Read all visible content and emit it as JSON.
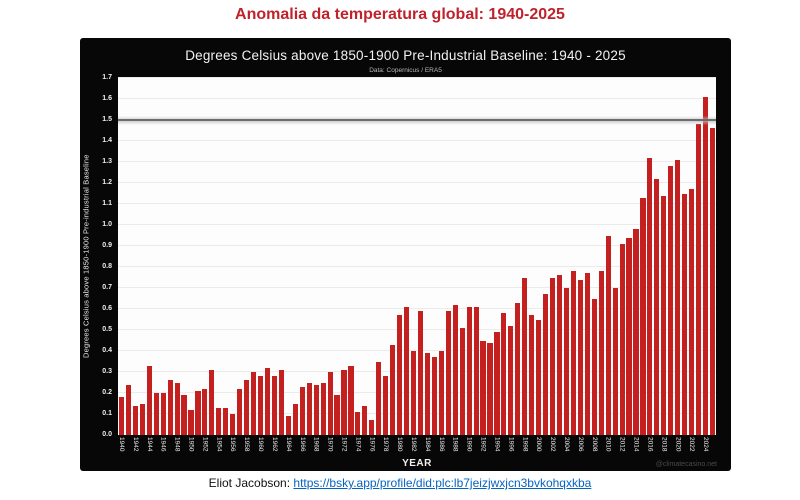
{
  "page": {
    "title": "Anomalia da temperatura global: 1940-2025",
    "footer": {
      "prefix": "Eliot Jacobson: ",
      "link_text": "https://bsky.app/profile/did:plc:lb7jeizjwxjcn3bvkohqxkba"
    }
  },
  "chart": {
    "title": "Degrees Celsius above 1850-1900 Pre-Industrial Baseline: 1940 - 2025",
    "subtitle": "Data: Copernicus / ERA5",
    "ylabel": "Degrees Celsius above 1850-1900 Pre-industrial Baseline",
    "xlabel": "YEAR",
    "watermark": "@climatecasino.net"
  },
  "colors": {
    "page_title": "#c0222c",
    "bar": "#c3201f",
    "chart_background": "#070707",
    "plot_background": "#fdfdfd",
    "link_blue": "#0563c1",
    "threshold_gray": "#6d6d6d"
  },
  "chart_data": {
    "type": "bar",
    "title": "Degrees Celsius above 1850-1900 Pre-Industrial Baseline: 1940 - 2025",
    "subtitle": "Data: Copernicus / ERA5",
    "xlabel": "YEAR",
    "ylabel": "Degrees Celsius above 1850-1900 Pre-industrial Baseline",
    "ylim": [
      0.0,
      1.7
    ],
    "ytick_step": 0.1,
    "xtick_step": 2,
    "grid": true,
    "threshold_value": 1.5,
    "legend": "none",
    "x": [
      1940,
      1941,
      1942,
      1943,
      1944,
      1945,
      1946,
      1947,
      1948,
      1949,
      1950,
      1951,
      1952,
      1953,
      1954,
      1955,
      1956,
      1957,
      1958,
      1959,
      1960,
      1961,
      1962,
      1963,
      1964,
      1965,
      1966,
      1967,
      1968,
      1969,
      1970,
      1971,
      1972,
      1973,
      1974,
      1975,
      1976,
      1977,
      1978,
      1979,
      1980,
      1981,
      1982,
      1983,
      1984,
      1985,
      1986,
      1987,
      1988,
      1989,
      1990,
      1991,
      1992,
      1993,
      1994,
      1995,
      1996,
      1997,
      1998,
      1999,
      2000,
      2001,
      2002,
      2003,
      2004,
      2005,
      2006,
      2007,
      2008,
      2009,
      2010,
      2011,
      2012,
      2013,
      2014,
      2015,
      2016,
      2017,
      2018,
      2019,
      2020,
      2021,
      2022,
      2023,
      2024,
      2025
    ],
    "values": [
      0.18,
      0.24,
      0.14,
      0.15,
      0.33,
      0.2,
      0.2,
      0.26,
      0.25,
      0.19,
      0.12,
      0.21,
      0.22,
      0.31,
      0.13,
      0.13,
      0.1,
      0.22,
      0.26,
      0.3,
      0.28,
      0.32,
      0.28,
      0.31,
      0.09,
      0.15,
      0.23,
      0.25,
      0.24,
      0.25,
      0.3,
      0.19,
      0.31,
      0.33,
      0.11,
      0.14,
      0.07,
      0.35,
      0.28,
      0.43,
      0.57,
      0.61,
      0.4,
      0.59,
      0.39,
      0.37,
      0.4,
      0.59,
      0.62,
      0.51,
      0.61,
      0.61,
      0.45,
      0.44,
      0.49,
      0.58,
      0.52,
      0.63,
      0.75,
      0.57,
      0.55,
      0.67,
      0.75,
      0.76,
      0.7,
      0.78,
      0.74,
      0.77,
      0.65,
      0.78,
      0.95,
      0.7,
      0.91,
      0.94,
      0.98,
      1.13,
      1.32,
      1.22,
      1.14,
      1.28,
      1.31,
      1.15,
      1.17,
      1.48,
      1.61,
      1.46
    ]
  }
}
